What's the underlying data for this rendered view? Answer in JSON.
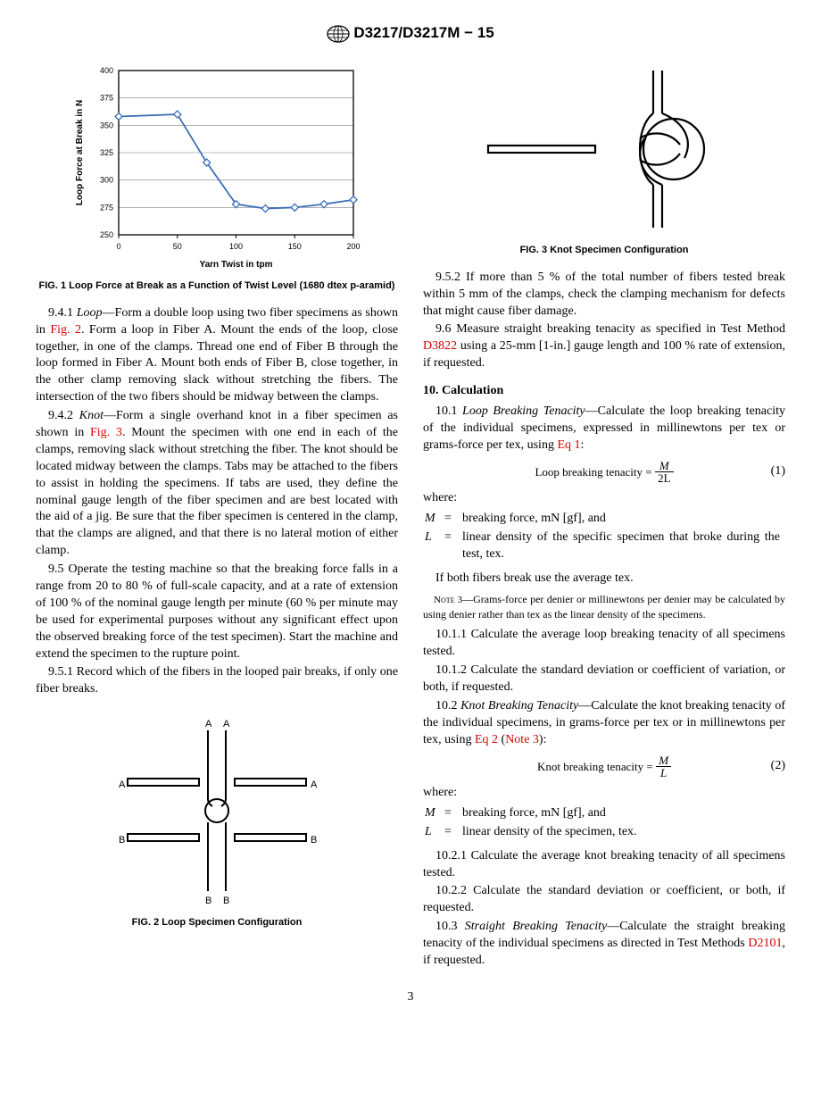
{
  "header": {
    "designation": "D3217/D3217M − 15"
  },
  "fig1": {
    "caption": "FIG. 1  Loop Force at Break as a Function of Twist Level (1680 dtex p-aramid)",
    "type": "line",
    "xlabel": "Yarn Twist in tpm",
    "ylabel": "Loop Force at Break in N",
    "xlim": [
      0,
      200
    ],
    "xtick_step": 50,
    "ylim": [
      250,
      400
    ],
    "ytick_step": 25,
    "x": [
      0,
      50,
      75,
      100,
      125,
      150,
      175,
      200
    ],
    "y": [
      358,
      360,
      316,
      278,
      274,
      275,
      278,
      282
    ],
    "line_color": "#3b6fb6",
    "marker": "diamond",
    "marker_fill": "#ffffff",
    "marker_stroke": "#3b6fb6",
    "grid_color": "#808080",
    "border_color": "#000000",
    "label_fontsize": 10,
    "tick_fontsize": 9
  },
  "fig2": {
    "caption": "FIG. 2  Loop Specimen Configuration",
    "labelA": "A",
    "labelB": "B"
  },
  "fig3": {
    "caption": "FIG. 3  Knot Specimen Configuration"
  },
  "body": {
    "p941a": "9.4.1 ",
    "p941_lead": "Loop",
    "p941b": "—Form a double loop using two fiber specimens as shown in ",
    "p941_link1": "Fig. 2",
    "p941c": ". Form a loop in Fiber A. Mount the ends of the loop, close together, in one of the clamps. Thread one end of Fiber B through the loop formed in Fiber A. Mount both ends of Fiber B, close together, in the other clamp removing slack without stretching the fibers. The intersection of the two fibers should be midway between the clamps.",
    "p942a": "9.4.2 ",
    "p942_lead": "Knot",
    "p942b": "—Form a single overhand knot in a fiber specimen as shown in ",
    "p942_link1": "Fig. 3",
    "p942c": ". Mount the specimen with one end in each of the clamps, removing slack without stretching the fiber. The knot should be located midway between the clamps. Tabs may be attached to the fibers to assist in holding the specimens. If tabs are used, they define the nominal gauge length of the fiber specimen and are best located with the aid of a jig. Be sure that the fiber specimen is centered in the clamp, that the clamps are aligned, and that there is no lateral motion of either clamp.",
    "p95": "9.5 Operate the testing machine so that the breaking force falls in a range from 20 to 80 % of full-scale capacity, and at a rate of extension of 100 % of the nominal gauge length per minute (60 % per minute may be used for experimental purposes without any significant effect upon the observed breaking force of the test specimen). Start the machine and extend the specimen to the rupture point.",
    "p951": "9.5.1 Record which of the fibers in the looped pair breaks, if only one fiber breaks.",
    "p952": "9.5.2 If more than 5 % of the total number of fibers tested break within 5 mm of the clamps, check the clamping mechanism for defects that might cause fiber damage.",
    "p96a": "9.6 Measure straight breaking tenacity as specified in Test Method ",
    "p96_link": "D3822",
    "p96b": " using a 25-mm [1-in.] gauge length and 100 % rate of extension, if requested.",
    "s10_head": "10.  Calculation",
    "p101a": "10.1 ",
    "p101_lead": "Loop Breaking Tenacity",
    "p101b": "—Calculate the loop breaking tenacity of the individual specimens, expressed in millinewtons per tex or grams-force per tex, using ",
    "p101_link": "Eq 1",
    "p101c": ":",
    "eq1_label": "Loop breaking tenacity =",
    "eq1_num": "M",
    "eq1_den": "2L",
    "eq1_no": "(1)",
    "where": "where:",
    "var_M": "M",
    "var_M_def": "breaking force, mN [gf], and",
    "var_L": "L",
    "var_L_def": "linear density of the specific specimen that broke during the test, tex.",
    "p101_tail": "If both fibers break use the average tex.",
    "note3_label": "Note 3",
    "note3_body": "—Grams-force per denier or millinewtons per denier may be calculated by using denier rather than tex as the linear density of the specimens.",
    "p1011": "10.1.1 Calculate the average loop breaking tenacity of all specimens tested.",
    "p1012": "10.1.2 Calculate the standard deviation or coefficient of variation, or both, if requested.",
    "p102a": "10.2 ",
    "p102_lead": "Knot Breaking Tenacity",
    "p102b": "—Calculate the knot breaking tenacity of the individual specimens, in grams-force per tex or in millinewtons per tex, using ",
    "p102_link1": "Eq 2",
    "p102_mid": " (",
    "p102_link2": "Note 3",
    "p102c": "):",
    "eq2_label": "Knot breaking tenacity =",
    "eq2_num": "M",
    "eq2_den": "L",
    "eq2_no": "(2)",
    "var2_M_def": "breaking force, mN [gf], and",
    "var2_L_def": "linear density of the specimen, tex.",
    "p1021": "10.2.1 Calculate the average knot breaking tenacity of all specimens tested.",
    "p1022": "10.2.2 Calculate the standard deviation or coefficient, or both, if requested.",
    "p103a": "10.3 ",
    "p103_lead": "Straight Breaking Tenacity",
    "p103b": "—Calculate the straight breaking tenacity of the individual specimens as directed in Test Methods ",
    "p103_link": "D2101",
    "p103c": ", if requested."
  },
  "page_number": "3"
}
